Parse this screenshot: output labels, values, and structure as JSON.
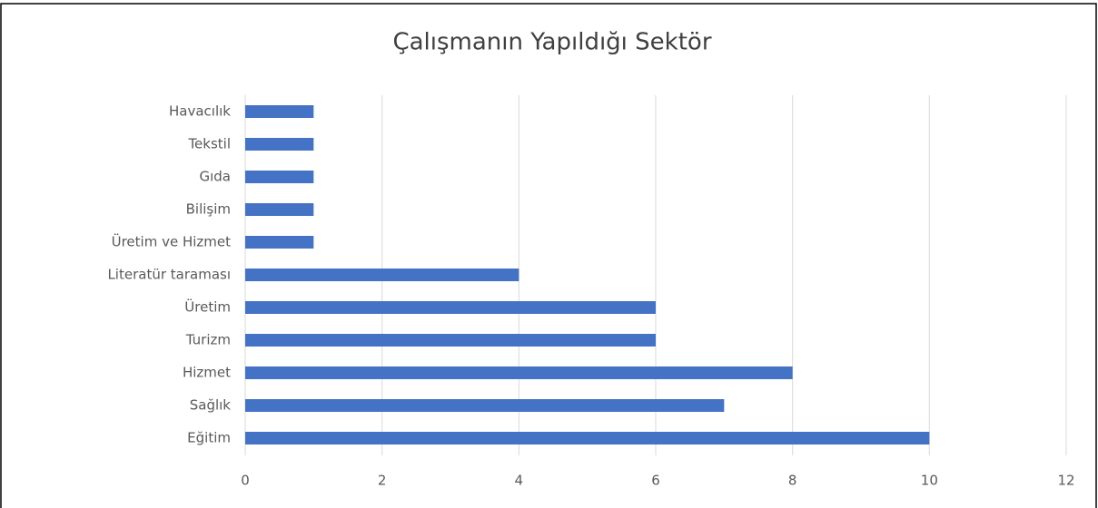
{
  "chart_data": {
    "type": "barh",
    "title": "Çalışmanın Yapıldığı Sektör",
    "categories": [
      "Havacılık",
      "Tekstil",
      "Gıda",
      "Bilişim",
      "Üretim ve Hizmet",
      "Literatür taraması",
      "Üretim",
      "Turizm",
      "Hizmet",
      "Sağlık",
      "Eğitim"
    ],
    "values": [
      1,
      1,
      1,
      1,
      1,
      4,
      6,
      6,
      8,
      7,
      10
    ],
    "color": "#4472c4",
    "xlim": [
      0,
      12
    ],
    "xticks": [
      0,
      2,
      4,
      6,
      8,
      10,
      12
    ],
    "grid": true
  }
}
